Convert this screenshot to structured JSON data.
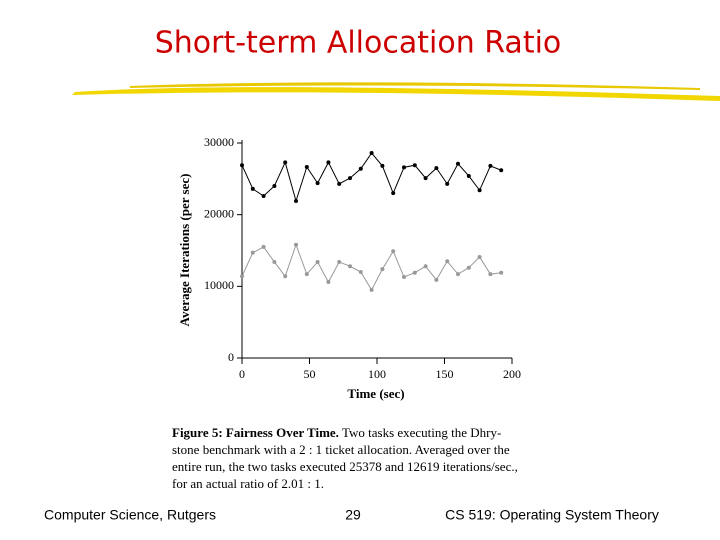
{
  "slide": {
    "title": "Short-term Allocation Ratio",
    "footer_left": "Computer Science, Rutgers",
    "footer_center": "29",
    "footer_right": "CS 519: Operating System Theory"
  },
  "caption": {
    "label": "Figure 5:  Fairness Over Time.",
    "lines": [
      "Two tasks executing the Dhry-",
      "stone benchmark with a 2 : 1 ticket allocation. Averaged over the",
      "entire run, the two tasks executed 25378 and 12619 iterations/sec.,",
      "for an actual ratio of 2.01 : 1."
    ]
  },
  "chart_data": {
    "type": "line",
    "x_label": "Time (sec)",
    "y_label": "Average Iterations (per sec)",
    "x": [
      0,
      8,
      16,
      24,
      32,
      40,
      48,
      56,
      64,
      72,
      80,
      88,
      96,
      104,
      112,
      120,
      128,
      136,
      144,
      152,
      160,
      168,
      176,
      184,
      192
    ],
    "series": [
      {
        "color": "#000000",
        "values": [
          26900,
          23600,
          22600,
          24000,
          27300,
          21900,
          26650,
          24400,
          27300,
          24300,
          25100,
          26400,
          28600,
          26800,
          23000,
          26600,
          26900,
          25100,
          26500,
          24300,
          27100,
          25400,
          23400,
          26800,
          26200
        ]
      },
      {
        "color": "#999999",
        "values": [
          11400,
          14700,
          15500,
          13400,
          11400,
          15800,
          11700,
          13400,
          10600,
          13400,
          12800,
          12000,
          9500,
          12400,
          14900,
          11300,
          11900,
          12800,
          10900,
          13500,
          11700,
          12600,
          14100,
          11700,
          11900
        ]
      }
    ],
    "xlim": [
      0,
      200
    ],
    "xticks": [
      0,
      50,
      100,
      150,
      200
    ],
    "ylim": [
      0,
      30000
    ],
    "yticks": [
      0,
      10000,
      20000,
      30000
    ]
  }
}
